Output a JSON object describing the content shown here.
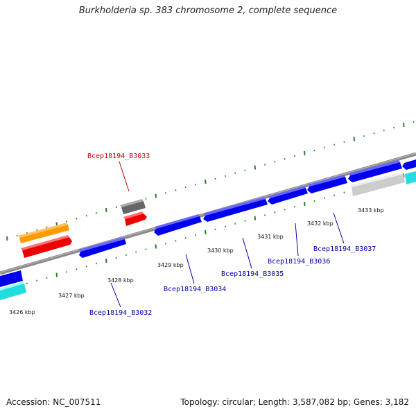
{
  "title": "Burkholderia sp. 383 chromosome 2, complete sequence",
  "footer": {
    "accession": "Accession: NC_007511",
    "summary": "Topology: circular; Length: 3,587,082 bp; Genes: 3,182"
  },
  "colors": {
    "backbone": "#8a8a8a",
    "tick": "#2e7d2e",
    "gene_forward": "#0000ee",
    "gene_reverse": "#0000ee",
    "highlight_label": "#cc0000",
    "gene_label": "#0000aa",
    "orange": "#ff9a00",
    "red": "#ee0000",
    "gray_dark": "#666666",
    "gray_light": "#cccccc",
    "cyan": "#22dddd"
  },
  "scale_labels": [
    "3426 kbp",
    "3427 kbp",
    "3428 kbp",
    "3429 kbp",
    "3430 kbp",
    "3431 kbp",
    "3432 kbp",
    "3433 kbp"
  ],
  "gene_labels": [
    {
      "text": "Bcep18194_B3033",
      "highlight": true
    },
    {
      "text": "Bcep18194_B3032",
      "highlight": false
    },
    {
      "text": "Bcep18194_B3034",
      "highlight": false
    },
    {
      "text": "Bcep18194_B3035",
      "highlight": false
    },
    {
      "text": "Bcep18194_B3036",
      "highlight": false
    },
    {
      "text": "Bcep18194_B3037",
      "highlight": false
    }
  ]
}
